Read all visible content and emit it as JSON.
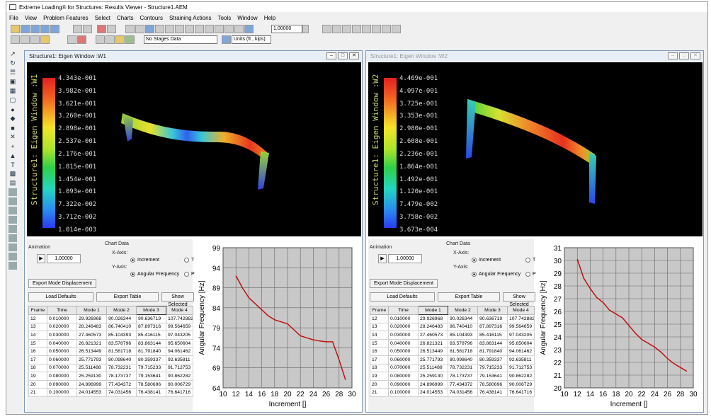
{
  "app": {
    "title": "Extreme Loading® for Structures: Results Viewer - Structure1.AEM"
  },
  "menu": [
    "File",
    "View",
    "Problem Features",
    "Select",
    "Charts",
    "Contours",
    "Straining Actions",
    "Tools",
    "Window",
    "Help"
  ],
  "toolbar": {
    "stages_value": "No Stages Data",
    "units_value": "Units (ft , kips)",
    "scale_value": "1.00000"
  },
  "windows": [
    {
      "title": "Structure1: Eigen Window :W1",
      "view_label": "Structure1: Eigen Window :W1",
      "scale": [
        "4.343e-001",
        "3.982e-001",
        "3.621e-001",
        "3.260e-001",
        "2.898e-001",
        "2.537e-001",
        "2.176e-001",
        "1.815e-001",
        "1.454e-001",
        "1.093e-001",
        "7.322e-002",
        "3.712e-002",
        "1.014e-003"
      ],
      "chart": {
        "type": "line",
        "xlabel": "Increment []",
        "ylabel": "Angular Frequency [Hz]",
        "xlim": [
          10,
          30
        ],
        "ylim": [
          64,
          99
        ],
        "xticks": [
          "10",
          "12",
          "14",
          "16",
          "18",
          "20",
          "22",
          "24",
          "26",
          "28",
          "30"
        ],
        "yticks": [
          "99",
          "94",
          "89",
          "84",
          "79",
          "74",
          "69",
          "64"
        ],
        "x": [
          12,
          13,
          14,
          15,
          16,
          17,
          18,
          19,
          20,
          21,
          22,
          23,
          24,
          25,
          26,
          27,
          28,
          29
        ],
        "y": [
          92,
          89,
          86.5,
          85,
          83.5,
          82,
          81,
          80.5,
          80,
          78.5,
          77,
          76.5,
          76,
          75.7,
          75.5,
          75.5,
          71,
          66
        ]
      }
    },
    {
      "title": "Structure1: Eigen Window :W2",
      "view_label": "Structure1: Eigen Window :W2",
      "scale": [
        "4.469e-001",
        "4.097e-001",
        "3.725e-001",
        "3.353e-001",
        "2.980e-001",
        "2.608e-001",
        "2.236e-001",
        "1.864e-001",
        "1.492e-001",
        "1.120e-001",
        "7.479e-002",
        "3.758e-002",
        "3.673e-004"
      ],
      "chart": {
        "type": "line",
        "xlabel": "Increment []",
        "ylabel": "Angular Frequency [Hz]",
        "xlim": [
          10,
          30
        ],
        "ylim": [
          20,
          31
        ],
        "xticks": [
          "10",
          "12",
          "14",
          "16",
          "18",
          "20",
          "22",
          "24",
          "26",
          "28",
          "30"
        ],
        "yticks": [
          "31",
          "30",
          "29",
          "28",
          "27",
          "26",
          "25",
          "24",
          "23",
          "22",
          "21",
          "20"
        ],
        "x": [
          12,
          13,
          14,
          15,
          16,
          17,
          18,
          19,
          20,
          21,
          22,
          23,
          24,
          25,
          26,
          27,
          28,
          29
        ],
        "y": [
          30.1,
          28.6,
          27.8,
          27.1,
          26.7,
          26.1,
          25.8,
          25.5,
          24.9,
          24.3,
          23.8,
          23.5,
          23.2,
          22.8,
          22.3,
          21.9,
          21.6,
          21.3
        ]
      }
    }
  ],
  "panel": {
    "animation_label": "Animation",
    "anim_value": "1.00000",
    "chart_data_label": "Chart Data",
    "xaxis_label": "X-Axis:",
    "yaxis_label": "Y-Axis:",
    "opt_increment": "Increment",
    "opt_t": "T",
    "opt_angfreq": "Angular Frequency",
    "opt_p": "P",
    "export_mode": "Export Mode Displacement",
    "load_defaults": "Load Defaults",
    "export_table": "Export Table",
    "show_selected": "Show Selected"
  },
  "table": {
    "headers": [
      "Frame",
      "Time",
      "Mode 1",
      "Mode 2",
      "Mode 3",
      "Mode 4"
    ],
    "rows": [
      [
        "12",
        "0.010000",
        "29.926968",
        "90.026344",
        "90.636719",
        "107.742882"
      ],
      [
        "13",
        "0.020000",
        "28.246483",
        "86.740410",
        "87.897316",
        "99.564659"
      ],
      [
        "14",
        "0.030000",
        "27.460573",
        "85.104393",
        "85.416115",
        "97.043205"
      ],
      [
        "15",
        "0.040000",
        "26.821321",
        "83.578796",
        "83.863144",
        "95.650604"
      ],
      [
        "16",
        "0.050000",
        "26.513449",
        "81.581718",
        "81.791840",
        "94.061462"
      ],
      [
        "17",
        "0.060000",
        "25.771793",
        "80.098640",
        "80.359337",
        "92.635811"
      ],
      [
        "18",
        "0.070000",
        "25.511488",
        "78.732231",
        "79.715233",
        "91.712753"
      ],
      [
        "19",
        "0.080000",
        "25.259130",
        "78.173737",
        "79.153641",
        "90.862282"
      ],
      [
        "20",
        "0.090000",
        "24.896999",
        "77.434372",
        "78.580696",
        "90.006729"
      ],
      [
        "21",
        "0.100000",
        "24.014553",
        "74.031456",
        "76.438141",
        "76.641716"
      ]
    ]
  }
}
